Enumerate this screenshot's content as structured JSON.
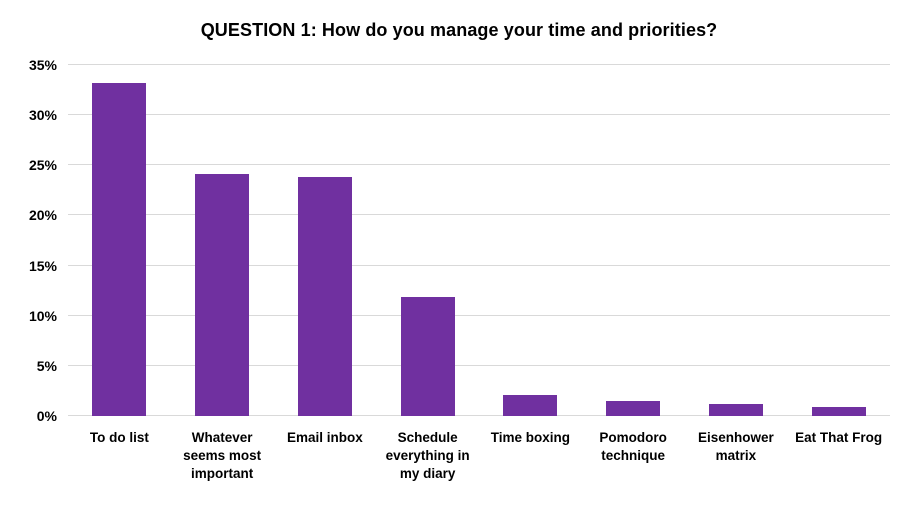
{
  "chart_data": {
    "type": "bar",
    "title": "QUESTION 1: How do you manage your time and priorities?",
    "categories": [
      "To do list",
      "Whatever seems most important",
      "Email inbox",
      "Schedule everything in my diary",
      "Time boxing",
      "Pomodoro technique",
      "Eisenhower matrix",
      "Eat That Frog"
    ],
    "values": [
      33.2,
      24.1,
      23.8,
      11.9,
      2.1,
      1.5,
      1.2,
      0.9
    ],
    "xlabel": "",
    "ylabel": "",
    "ylim": [
      0,
      35
    ],
    "ytick_step": 5,
    "ytick_labels": [
      "0%",
      "5%",
      "10%",
      "15%",
      "20%",
      "25%",
      "30%",
      "35%"
    ],
    "grid": true,
    "legend": false,
    "colors": {
      "bar": "#7030A0",
      "gridline": "#D9D9D9",
      "text": "#000000",
      "background": "#FFFFFF"
    }
  }
}
